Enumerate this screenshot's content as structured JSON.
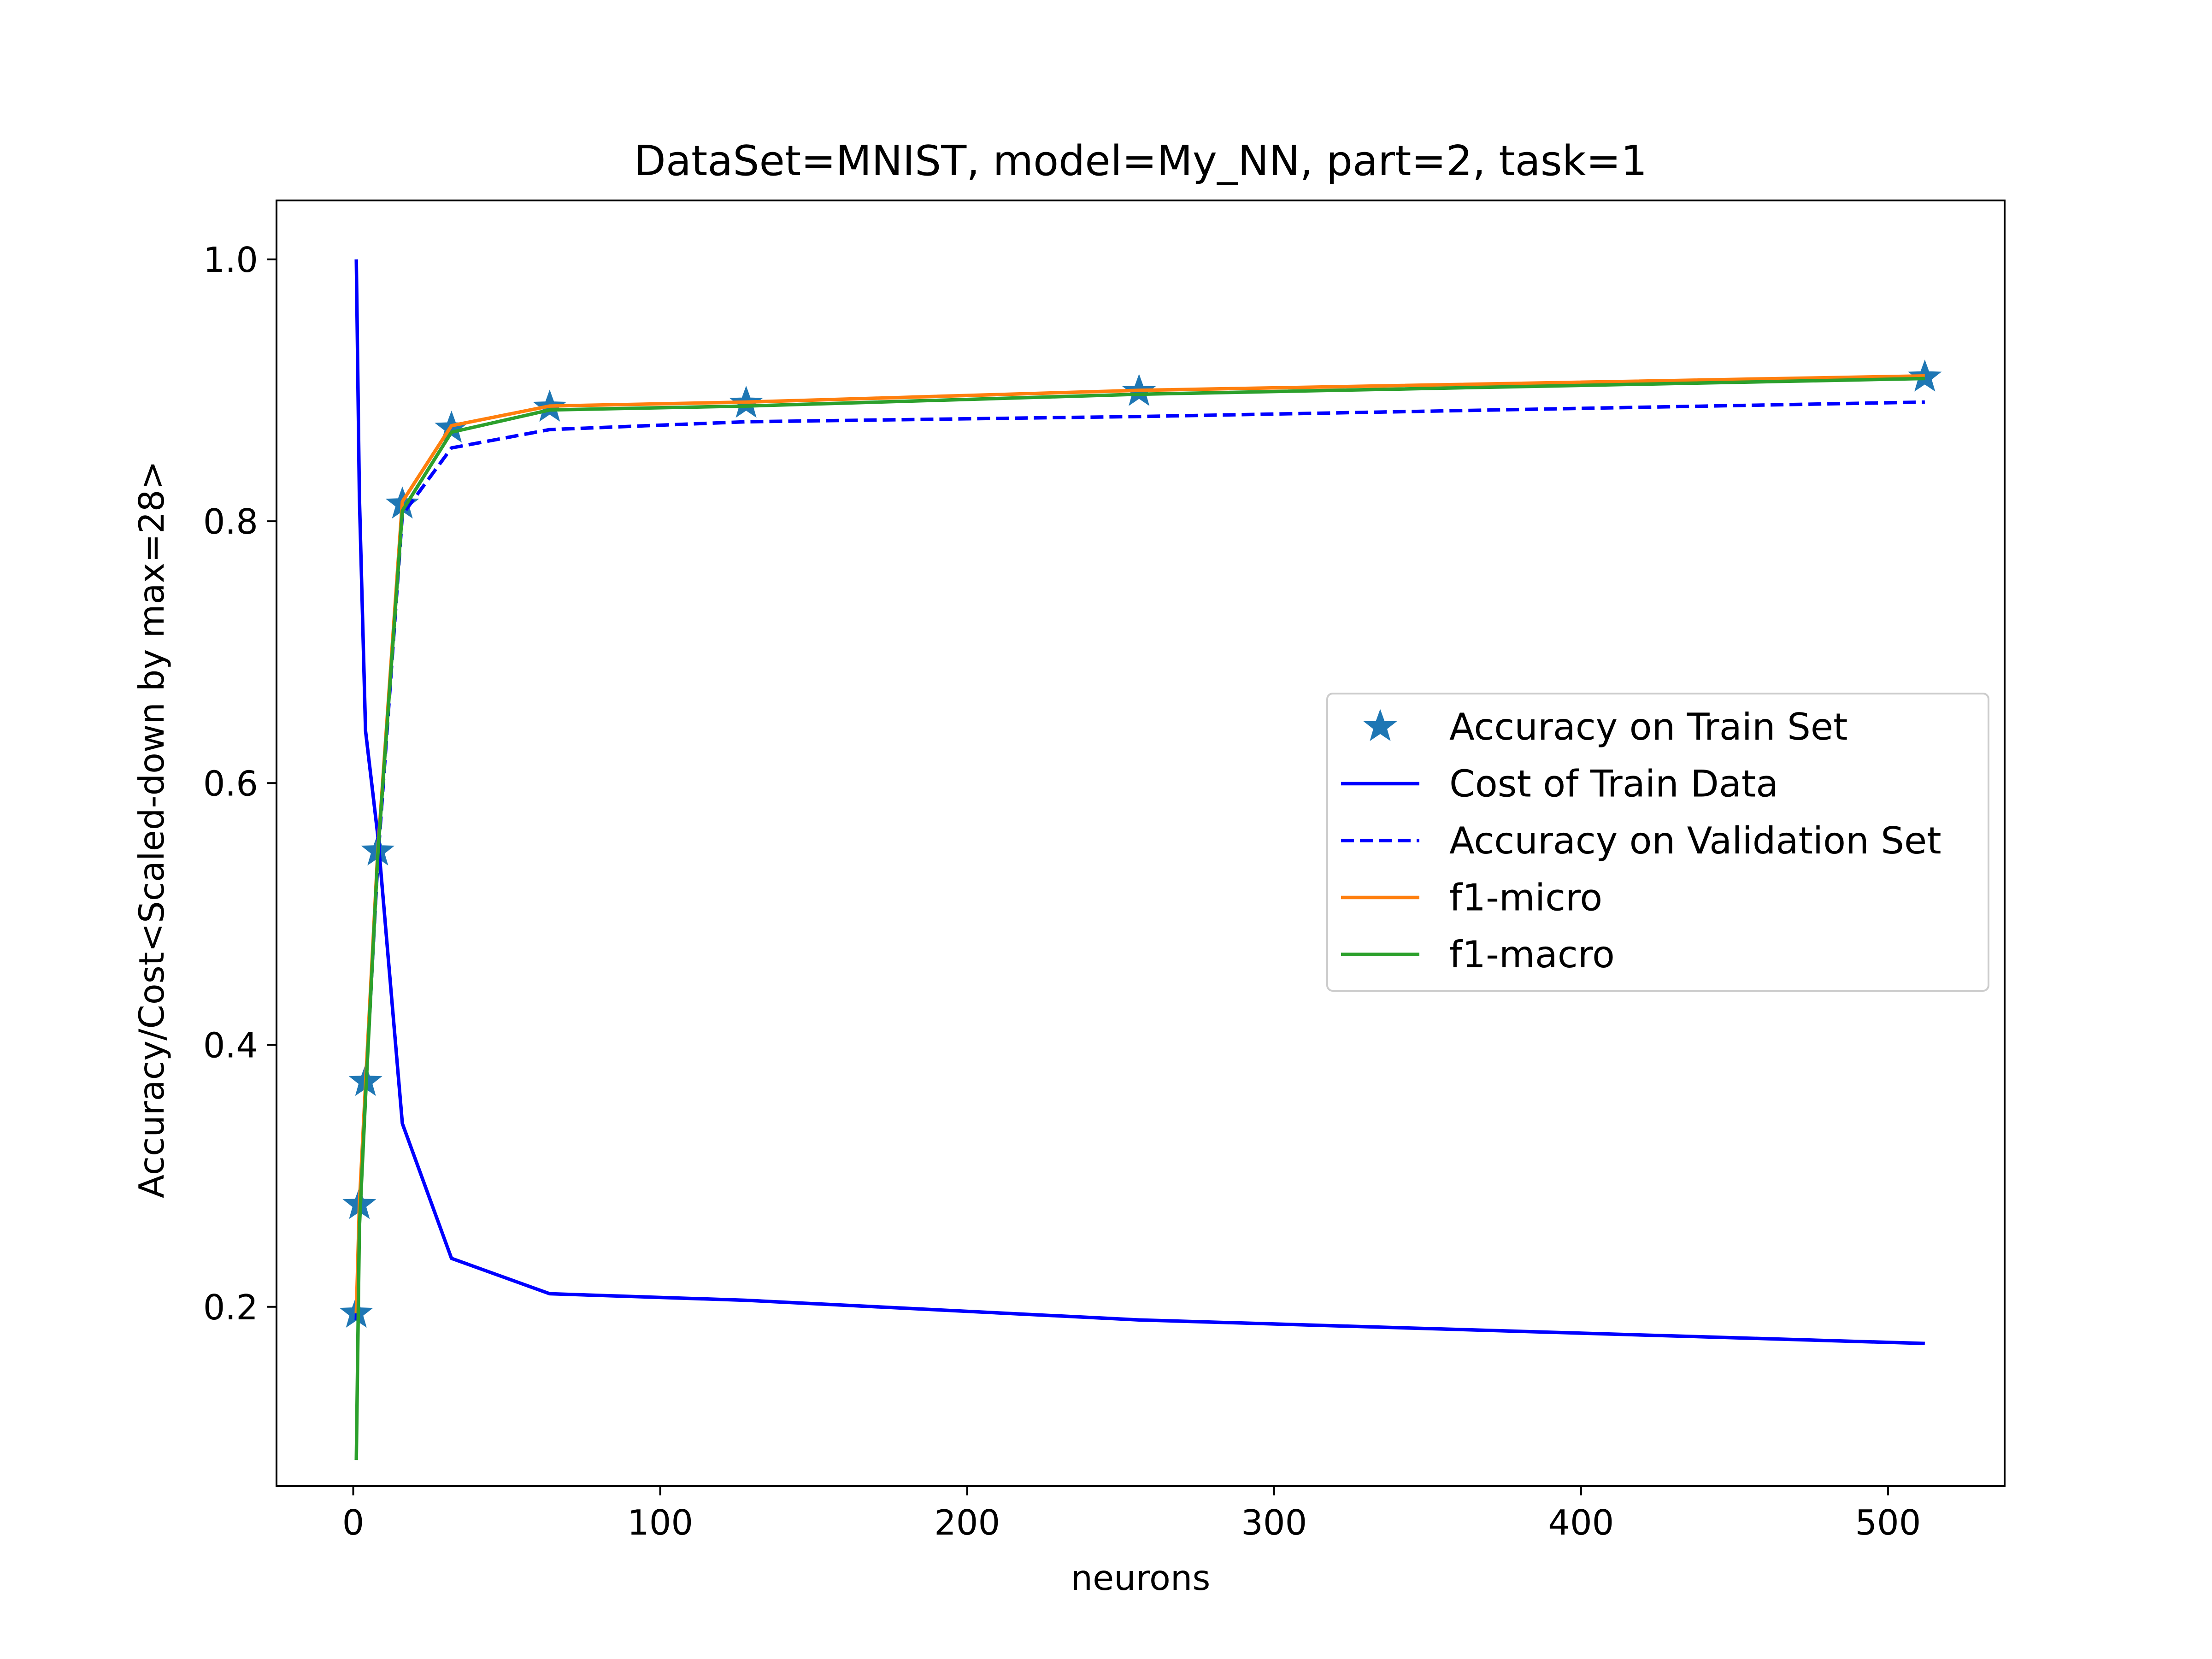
{
  "chart_data": {
    "type": "line",
    "title": "DataSet=MNIST, model=My_NN, part=2, task=1",
    "xlabel": "neurons",
    "ylabel": "Accuracy/Cost<Scaled-down by max=28>",
    "xlim": [
      -25,
      538
    ],
    "ylim": [
      0.063,
      1.045
    ],
    "xticks": [
      0,
      100,
      200,
      300,
      400,
      500
    ],
    "xtick_labels": [
      "0",
      "100",
      "200",
      "300",
      "400",
      "500"
    ],
    "yticks": [
      0.2,
      0.4,
      0.6,
      0.8,
      1.0
    ],
    "ytick_labels": [
      "0.2",
      "0.4",
      "0.6",
      "0.8",
      "1.0"
    ],
    "grid": false,
    "legend_position": "center-right",
    "x": [
      1,
      2,
      4,
      8,
      16,
      32,
      64,
      128,
      256,
      512
    ],
    "series": [
      {
        "name": "Accuracy on Train Set",
        "style": "marker-star",
        "color": "#1f77b4",
        "values": [
          0.195,
          0.278,
          0.372,
          0.548,
          0.813,
          0.871,
          0.887,
          0.89,
          0.899,
          0.91
        ]
      },
      {
        "name": "Cost of Train Data",
        "style": "solid",
        "color": "#0000ff",
        "values": [
          1.0,
          0.82,
          0.64,
          0.56,
          0.34,
          0.237,
          0.21,
          0.205,
          0.19,
          0.172
        ]
      },
      {
        "name": "Accuracy on Validation Set",
        "style": "dashed",
        "color": "#0000ff",
        "values": [
          0.19,
          0.27,
          0.365,
          0.54,
          0.805,
          0.856,
          0.87,
          0.876,
          0.88,
          0.891
        ]
      },
      {
        "name": "f1-micro",
        "style": "solid",
        "color": "#ff7f0e",
        "values": [
          0.195,
          0.278,
          0.37,
          0.548,
          0.815,
          0.873,
          0.888,
          0.891,
          0.9,
          0.911
        ]
      },
      {
        "name": "f1-macro",
        "style": "solid",
        "color": "#2ca02c",
        "values": [
          0.083,
          0.26,
          0.36,
          0.545,
          0.808,
          0.868,
          0.885,
          0.888,
          0.897,
          0.909
        ]
      }
    ]
  }
}
